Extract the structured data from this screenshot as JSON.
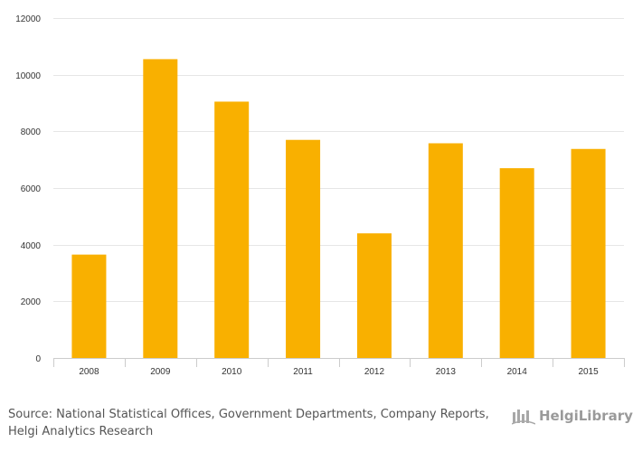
{
  "chart_data": {
    "type": "bar",
    "categories": [
      "2008",
      "2009",
      "2010",
      "2011",
      "2012",
      "2013",
      "2014",
      "2015"
    ],
    "values": [
      3650,
      10550,
      9050,
      7700,
      4400,
      7580,
      6700,
      7380
    ],
    "ylim": [
      0,
      12000
    ],
    "yticks": [
      0,
      2000,
      4000,
      6000,
      8000,
      10000,
      12000
    ],
    "title": "",
    "xlabel": "",
    "ylabel": "",
    "grid": true,
    "bar_color": "#f9b000"
  },
  "footer": {
    "source_line1": "Source: National Statistical Offices, Government Departments, Company Reports,",
    "source_line2": "Helgi Analytics Research",
    "logo_text": "HelgiLibrary"
  }
}
